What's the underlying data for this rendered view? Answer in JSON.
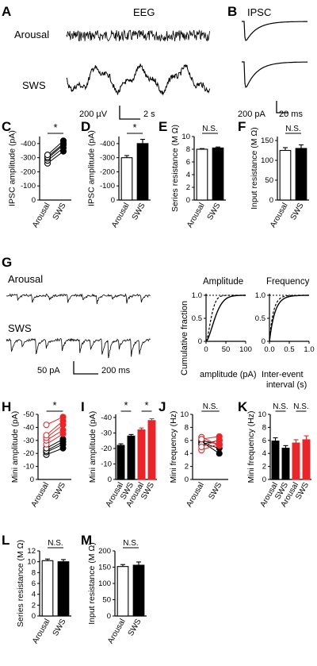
{
  "panel_labels": [
    "A",
    "B",
    "C",
    "D",
    "E",
    "F",
    "G",
    "H",
    "I",
    "J",
    "K",
    "L",
    "M"
  ],
  "panelA": {
    "title": "EEG",
    "rows": [
      "Arousal",
      "SWS"
    ],
    "scale_v": "200 µV",
    "scale_t": "2 s"
  },
  "panelB": {
    "title": "IPSC",
    "scale_a": "200 pA",
    "scale_t": "20 ms"
  },
  "panelG": {
    "row1": "Arousal",
    "row2": "SWS",
    "scale_a": "50 pA",
    "scale_t": "200 ms",
    "amp_title": "Amplitude",
    "freq_title": "Frequency",
    "cum_ylabel": "Cumulative fraction",
    "amp_xlabel": "amplitude (pA)",
    "freq_xlabel": "Inter-event interval (s)"
  },
  "groups": {
    "arousal": "Arousal",
    "sws": "SWS"
  },
  "sig": {
    "star": "*",
    "ns": "N.S."
  },
  "colors": {
    "black": "#000000",
    "red": "#e8262a"
  },
  "chart_data": [
    {
      "id": "C",
      "type": "scatter",
      "ylabel": "IPSC amplitude (pA)",
      "yticks": [
        0,
        -100,
        -200,
        -300,
        -400
      ],
      "ylim": [
        0,
        -450
      ],
      "categories": [
        "Arousal",
        "SWS"
      ],
      "pairs": [
        [
          -260,
          -345
        ],
        [
          -280,
          -370
        ],
        [
          -295,
          -390
        ],
        [
          -305,
          -400
        ],
        [
          -320,
          -420
        ]
      ],
      "significance": "*"
    },
    {
      "id": "D",
      "type": "bar",
      "ylabel": "IPSC amplitude (pA)",
      "yticks": [
        0,
        -100,
        -200,
        -300,
        -400
      ],
      "ylim": [
        0,
        -450
      ],
      "categories": [
        "Arousal",
        "SWS"
      ],
      "values": [
        -300,
        -400
      ],
      "errors": [
        15,
        30
      ],
      "significance": "*"
    },
    {
      "id": "E",
      "type": "bar",
      "ylabel": "Series resistance (M Ω)",
      "yticks": [
        0,
        2,
        4,
        6,
        8,
        10
      ],
      "ylim": [
        0,
        10
      ],
      "categories": [
        "Arousal",
        "SWS"
      ],
      "values": [
        8.0,
        8.2
      ],
      "errors": [
        0.1,
        0.15
      ],
      "significance": "N.S."
    },
    {
      "id": "F",
      "type": "bar",
      "ylabel": "Input resistance (M Ω)",
      "yticks": [
        0,
        50,
        100,
        150
      ],
      "ylim": [
        0,
        160
      ],
      "categories": [
        "Arousal",
        "SWS"
      ],
      "values": [
        125,
        130
      ],
      "errors": [
        7,
        9
      ],
      "significance": "N.S."
    },
    {
      "id": "G-amp",
      "type": "line",
      "xticks": [
        0,
        50,
        100
      ],
      "yticks": [
        0,
        0.5,
        1.0
      ],
      "xlim": [
        0,
        100
      ],
      "ylim": [
        0,
        1
      ]
    },
    {
      "id": "G-freq",
      "type": "line",
      "xticks": [
        "0.0",
        "0.5",
        "1.0"
      ],
      "yticks": [
        0,
        0.5,
        1.0
      ],
      "xlim": [
        0,
        1
      ],
      "ylim": [
        0,
        1
      ]
    },
    {
      "id": "H",
      "type": "scatter",
      "ylabel": "Mini amplitude (pA)",
      "yticks": [
        0,
        -10,
        -20,
        -30,
        -40,
        -50
      ],
      "ylim": [
        0,
        -50
      ],
      "categories": [
        "Arousal",
        "SWS"
      ],
      "black_pairs": [
        [
          -19,
          -24
        ],
        [
          -21,
          -27
        ],
        [
          -22,
          -29
        ],
        [
          -24,
          -31
        ]
      ],
      "red_pairs": [
        [
          -27,
          -35
        ],
        [
          -30,
          -38
        ],
        [
          -32,
          -42
        ],
        [
          -34,
          -45
        ],
        [
          -42,
          -48
        ]
      ],
      "significance": "*"
    },
    {
      "id": "I",
      "type": "bar",
      "ylabel": "Mini amplitude (pA)",
      "yticks": [
        0,
        -10,
        -20,
        -30,
        -40
      ],
      "ylim": [
        0,
        -42
      ],
      "categories": [
        "Arousal",
        "SWS",
        "Arousal",
        "SWS"
      ],
      "values": [
        -22,
        -28,
        -32,
        -38
      ],
      "errors": [
        1,
        1,
        1.2,
        1.2
      ],
      "bar_colors": [
        "#000000",
        "#000000",
        "#e8262a",
        "#e8262a"
      ],
      "significance": [
        "*",
        "*"
      ]
    },
    {
      "id": "J",
      "type": "scatter",
      "ylabel": "Mini frequency (Hz)",
      "yticks": [
        0,
        2,
        4,
        6,
        8,
        10
      ],
      "ylim": [
        0,
        10
      ],
      "categories": [
        "Arousal",
        "SWS"
      ],
      "black_pairs": [
        [
          5.6,
          4.8
        ],
        [
          5.8,
          4.0
        ],
        [
          6.0,
          5.4
        ],
        [
          5.4,
          6.0
        ]
      ],
      "red_pairs": [
        [
          6.5,
          5.2
        ],
        [
          4.5,
          5.5
        ],
        [
          6.2,
          6.6
        ],
        [
          5.0,
          6.1
        ]
      ],
      "significance": "N.S."
    },
    {
      "id": "K",
      "type": "bar",
      "ylabel": "Mini frequency (Hz)",
      "yticks": [
        0,
        2,
        4,
        6,
        8,
        10
      ],
      "ylim": [
        0,
        10
      ],
      "categories": [
        "Arousal",
        "SWS",
        "Arousal",
        "SWS"
      ],
      "values": [
        5.9,
        4.8,
        5.6,
        6.1
      ],
      "errors": [
        0.5,
        0.4,
        0.5,
        0.6
      ],
      "bar_colors": [
        "#000000",
        "#000000",
        "#e8262a",
        "#e8262a"
      ],
      "significance": [
        "N.S.",
        "N.S."
      ]
    },
    {
      "id": "L",
      "type": "bar",
      "ylabel": "Series resistance (M Ω)",
      "yticks": [
        0,
        2,
        4,
        6,
        8,
        10,
        12
      ],
      "ylim": [
        0,
        12
      ],
      "categories": [
        "Arousal",
        "SWS"
      ],
      "values": [
        10.2,
        10.0
      ],
      "errors": [
        0.3,
        0.4
      ],
      "significance": "N.S."
    },
    {
      "id": "M",
      "type": "bar",
      "ylabel": "Input resistance (M Ω)",
      "yticks": [
        0,
        50,
        100,
        150,
        200
      ],
      "ylim": [
        0,
        200
      ],
      "categories": [
        "Arousal",
        "SWS"
      ],
      "values": [
        152,
        156
      ],
      "errors": [
        6,
        10
      ],
      "significance": "N.S."
    }
  ]
}
